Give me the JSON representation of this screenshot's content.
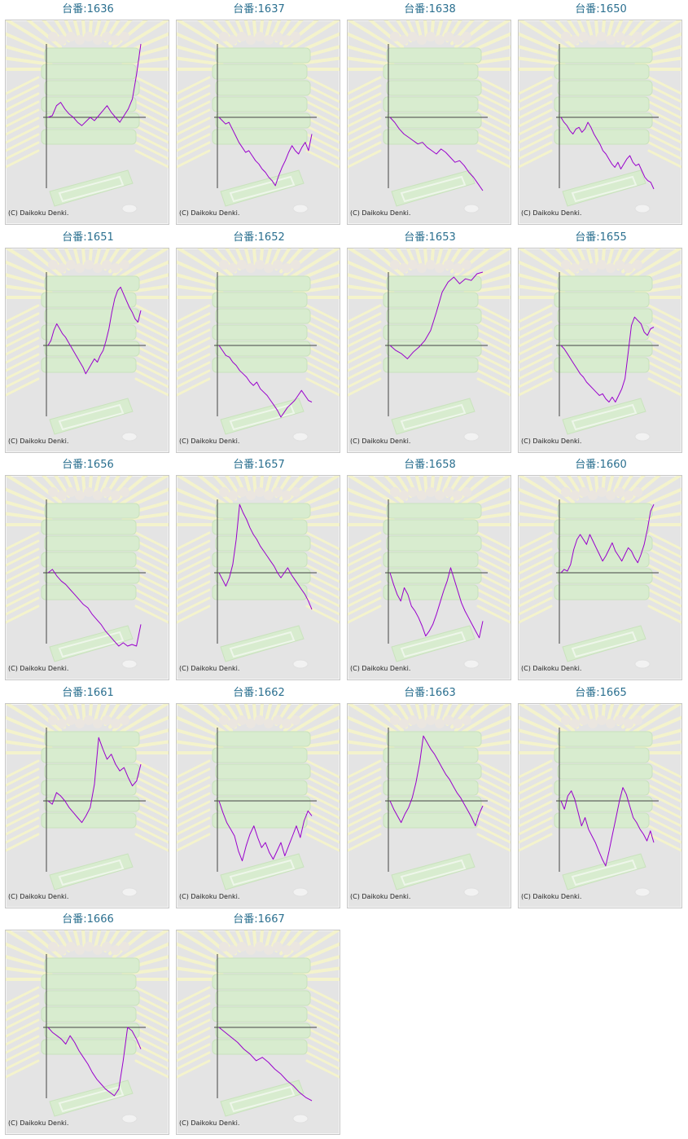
{
  "title_prefix": "台番:",
  "credit": "(C) Daikoku Denki.",
  "line_color": "#9900cc",
  "chart_data": [
    {
      "type": "line",
      "title": "台番:1636",
      "values": [
        0,
        2,
        14,
        18,
        10,
        4,
        0,
        -6,
        -10,
        -5,
        0,
        -4,
        2,
        8,
        14,
        6,
        0,
        -6,
        2,
        10,
        22,
        52,
        88
      ]
    },
    {
      "type": "line",
      "title": "台番:1637",
      "values": [
        0,
        -4,
        -8,
        -6,
        -14,
        -22,
        -30,
        -36,
        -42,
        -40,
        -46,
        -52,
        -56,
        -62,
        -66,
        -72,
        -76,
        -82,
        -70,
        -60,
        -52,
        -42,
        -34,
        -40,
        -44,
        -36,
        -30,
        -40,
        -20
      ]
    },
    {
      "type": "line",
      "title": "台番:1638",
      "values": [
        0,
        -6,
        -14,
        -20,
        -24,
        -28,
        -32,
        -30,
        -36,
        -40,
        -44,
        -38,
        -42,
        -48,
        -54,
        -52,
        -58,
        -66,
        -72,
        -80,
        -88
      ]
    },
    {
      "type": "line",
      "title": "台番:1650",
      "values": [
        0,
        -6,
        -10,
        -16,
        -20,
        -14,
        -12,
        -18,
        -14,
        -6,
        -12,
        -20,
        -26,
        -32,
        -40,
        -44,
        -50,
        -56,
        -60,
        -54,
        -62,
        -56,
        -50,
        -46,
        -54,
        -58,
        -56,
        -64,
        -72,
        -76,
        -78,
        -86
      ]
    },
    {
      "type": "line",
      "title": "台番:1651",
      "values": [
        0,
        6,
        18,
        26,
        20,
        14,
        10,
        4,
        -2,
        -8,
        -14,
        -20,
        -26,
        -34,
        -28,
        -22,
        -16,
        -20,
        -12,
        -6,
        6,
        20,
        40,
        56,
        66,
        70,
        62,
        54,
        46,
        40,
        32,
        28,
        42
      ]
    },
    {
      "type": "line",
      "title": "台番:1652",
      "values": [
        0,
        -6,
        -12,
        -14,
        -20,
        -24,
        -30,
        -34,
        -38,
        -44,
        -48,
        -44,
        -52,
        -56,
        -60,
        -66,
        -72,
        -78,
        -86,
        -80,
        -74,
        -70,
        -66,
        -60,
        -54,
        -60,
        -66,
        -68
      ]
    },
    {
      "type": "line",
      "title": "台番:1653",
      "values": [
        0,
        -6,
        -10,
        -16,
        -8,
        -2,
        6,
        18,
        40,
        64,
        76,
        82,
        74,
        80,
        78,
        86,
        88
      ]
    },
    {
      "type": "line",
      "title": "台番:1655",
      "values": [
        0,
        -4,
        -10,
        -16,
        -22,
        -28,
        -34,
        -38,
        -44,
        -48,
        -52,
        -56,
        -60,
        -58,
        -64,
        -68,
        -62,
        -68,
        -60,
        -52,
        -40,
        -8,
        24,
        34,
        30,
        26,
        16,
        12,
        20,
        22
      ]
    },
    {
      "type": "line",
      "title": "台番:1656",
      "values": [
        0,
        4,
        -4,
        -10,
        -14,
        -20,
        -26,
        -32,
        -38,
        -42,
        -50,
        -56,
        -62,
        -70,
        -76,
        -82,
        -88,
        -84,
        -88,
        -86,
        -88,
        -62
      ]
    },
    {
      "type": "line",
      "title": "台番:1657",
      "values": [
        0,
        -8,
        -16,
        -6,
        10,
        40,
        82,
        72,
        64,
        54,
        46,
        40,
        32,
        26,
        20,
        14,
        8,
        0,
        -6,
        0,
        6,
        -2,
        -8,
        -14,
        -20,
        -26,
        -34,
        -44
      ]
    },
    {
      "type": "line",
      "title": "台番:1658",
      "values": [
        0,
        -14,
        -26,
        -34,
        -18,
        -26,
        -40,
        -46,
        -54,
        -64,
        -76,
        -70,
        -62,
        -50,
        -36,
        -22,
        -10,
        6,
        -8,
        -22,
        -36,
        -46,
        -54,
        -62,
        -70,
        -78,
        -58
      ]
    },
    {
      "type": "line",
      "title": "台番:1660",
      "values": [
        0,
        4,
        2,
        10,
        28,
        40,
        46,
        40,
        34,
        46,
        38,
        30,
        22,
        14,
        20,
        28,
        36,
        26,
        20,
        14,
        22,
        30,
        26,
        18,
        12,
        22,
        34,
        52,
        74,
        82
      ]
    },
    {
      "type": "line",
      "title": "台番:1661",
      "values": [
        0,
        -4,
        10,
        6,
        0,
        -8,
        -14,
        -20,
        -26,
        -18,
        -8,
        20,
        76,
        62,
        50,
        56,
        44,
        36,
        40,
        28,
        18,
        24,
        44
      ]
    },
    {
      "type": "line",
      "title": "台番:1662",
      "values": [
        0,
        -14,
        -26,
        -34,
        -42,
        -60,
        -72,
        -54,
        -40,
        -30,
        -44,
        -56,
        -50,
        -62,
        -70,
        -60,
        -50,
        -66,
        -54,
        -42,
        -30,
        -44,
        -24,
        -12,
        -18
      ]
    },
    {
      "type": "line",
      "title": "台番:1663",
      "values": [
        0,
        -10,
        -18,
        -26,
        -16,
        -8,
        4,
        22,
        46,
        78,
        70,
        62,
        56,
        48,
        40,
        32,
        26,
        18,
        10,
        4,
        -4,
        -12,
        -20,
        -30,
        -16,
        -6
      ]
    },
    {
      "type": "line",
      "title": "台番:1665",
      "values": [
        0,
        -10,
        6,
        12,
        2,
        -14,
        -30,
        -20,
        -34,
        -42,
        -50,
        -60,
        -70,
        -78,
        -60,
        -40,
        -20,
        0,
        16,
        8,
        -6,
        -20,
        -26,
        -34,
        -40,
        -48,
        -36,
        -50
      ]
    },
    {
      "type": "line",
      "title": "台番:1666",
      "values": [
        0,
        -6,
        -10,
        -14,
        -20,
        -10,
        -18,
        -28,
        -36,
        -44,
        -54,
        -62,
        -68,
        -74,
        -78,
        -82,
        -74,
        -40,
        0,
        -4,
        -14,
        -26
      ]
    },
    {
      "type": "line",
      "title": "台番:1667",
      "values": [
        0,
        -6,
        -12,
        -18,
        -26,
        -32,
        -40,
        -36,
        -42,
        -50,
        -56,
        -64,
        -70,
        -78,
        -84,
        -88
      ]
    }
  ]
}
